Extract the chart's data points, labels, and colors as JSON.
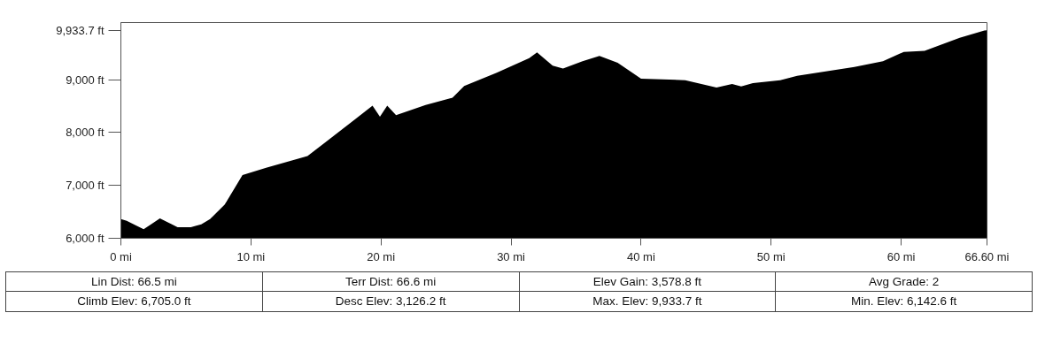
{
  "chart_data": {
    "type": "area",
    "series": [
      {
        "color": "#000000",
        "x": [
          0,
          0.45,
          1.75,
          3.0,
          4.36,
          5.38,
          6.18,
          6.86,
          7.99,
          9.35,
          11.17,
          14.35,
          15.94,
          17.98,
          19.35,
          19.92,
          20.48,
          21.16,
          23.43,
          25.5,
          26.4,
          28.9,
          31.4,
          32.0,
          33.2,
          34.0,
          35.5,
          36.8,
          38.2,
          40.0,
          43.4,
          45.8,
          47.0,
          47.7,
          48.6,
          50.7,
          52.0,
          56.4,
          58.6,
          60.2,
          61.8,
          64.5,
          66.4,
          66.6
        ],
        "values": [
          6365,
          6330,
          6170,
          6376,
          6210,
          6210,
          6265,
          6365,
          6641,
          7194,
          7333,
          7555,
          7858,
          8245,
          8510,
          8300,
          8510,
          8330,
          8520,
          8657,
          8880,
          9130,
          9408,
          9514,
          9265,
          9210,
          9348,
          9448,
          9320,
          9017,
          8990,
          8851,
          8917,
          8873,
          8934,
          8990,
          9072,
          9238,
          9348,
          9525,
          9545,
          9793,
          9928,
          9933.7
        ]
      }
    ],
    "xlim": [
      0,
      66.6
    ],
    "ylim": [
      6000,
      10080
    ],
    "xticks": [
      {
        "value": 0,
        "label": "0 mi"
      },
      {
        "value": 10,
        "label": "10 mi"
      },
      {
        "value": 20,
        "label": "20 mi"
      },
      {
        "value": 30,
        "label": "30 mi"
      },
      {
        "value": 40,
        "label": "40 mi"
      },
      {
        "value": 50,
        "label": "50 mi"
      },
      {
        "value": 60,
        "label": "60 mi"
      },
      {
        "value": 66.6,
        "label": "66.60 mi"
      }
    ],
    "yticks": [
      {
        "value": 6000,
        "label": "6,000 ft"
      },
      {
        "value": 7000,
        "label": "7,000 ft"
      },
      {
        "value": 8000,
        "label": "8,000 ft"
      },
      {
        "value": 9000,
        "label": "9,000 ft"
      },
      {
        "value": 9933.7,
        "label": "9,933.7 ft"
      }
    ],
    "grid": false,
    "annotations": [
      "Lin Dist: 66.5 mi",
      "Terr Dist: 66.6 mi",
      "Elev Gain: 3,578.8 ft",
      "Avg Grade: 2",
      "Climb Elev: 6,705.0 ft",
      "Desc Elev: 3,126.2 ft",
      "Max. Elev: 9,933.7 ft",
      "Min. Elev: 6,142.6 ft"
    ]
  }
}
